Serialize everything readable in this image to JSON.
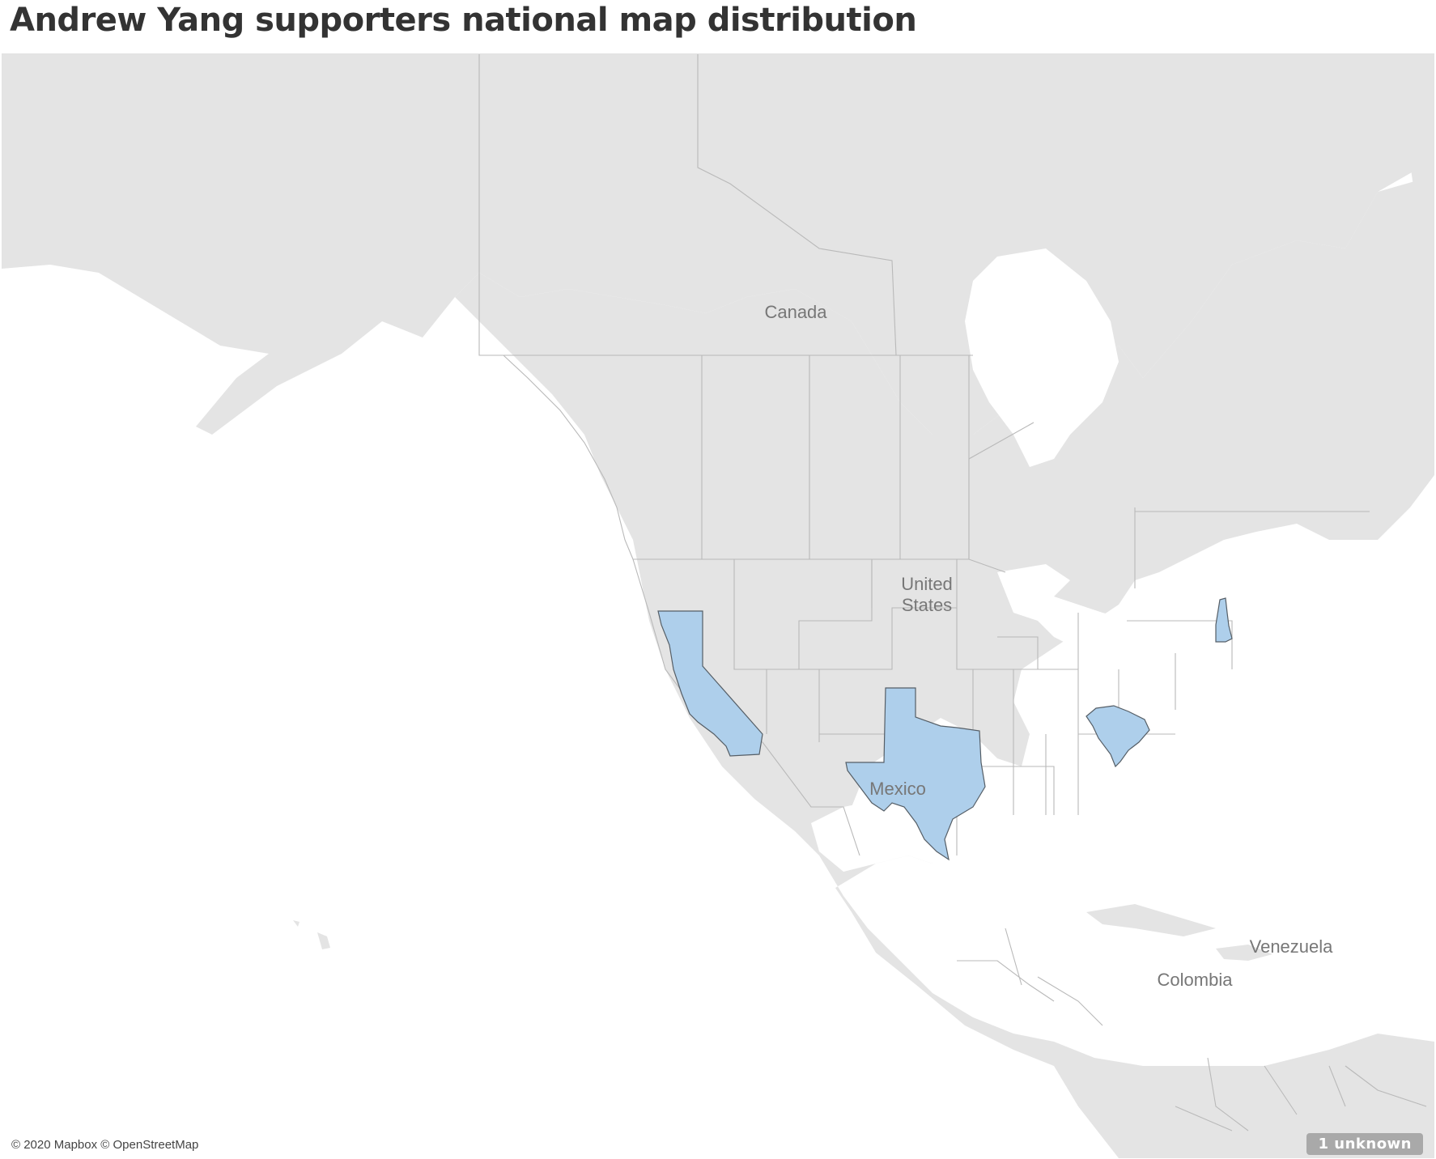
{
  "title": "Andrew Yang supporters national map distribution",
  "map": {
    "country_labels": {
      "canada": "Canada",
      "united_states_line1": "United",
      "united_states_line2": "States",
      "mexico": "Mexico",
      "venezuela": "Venezuela",
      "colombia": "Colombia"
    },
    "highlighted_regions": [
      "California",
      "Texas",
      "South Carolina",
      "New Hampshire"
    ],
    "colors": {
      "highlight_fill": "#aecfeb",
      "highlight_stroke": "#555e66",
      "land": "#e4e4e4",
      "water": "#ffffff",
      "borders": "#b9b9b9"
    },
    "attribution": "© 2020 Mapbox © OpenStreetMap",
    "unknown_indicator": "1 unknown"
  }
}
